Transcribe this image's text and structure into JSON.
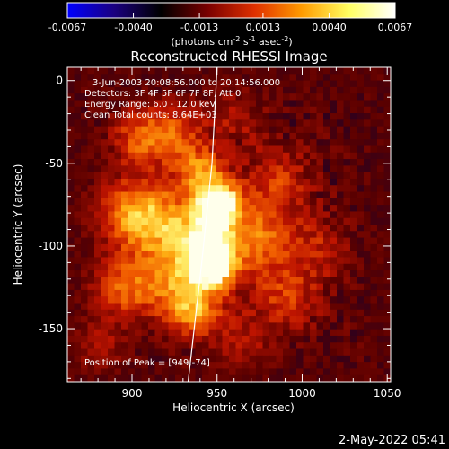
{
  "chart_data": {
    "type": "heatmap",
    "title": "Reconstructed RHESSI Image",
    "xlabel": "Heliocentric X (arcsec)",
    "ylabel": "Heliocentric Y (arcsec)",
    "xlim": [
      862,
      1052
    ],
    "ylim": [
      -182,
      8
    ],
    "x_ticks": [
      900,
      950,
      1000,
      1050
    ],
    "y_ticks": [
      0,
      -50,
      -100,
      -150
    ],
    "colorbar": {
      "ticks": [
        "-0.0067",
        "-0.0040",
        "-0.0013",
        "0.0013",
        "0.0040",
        "0.0067"
      ],
      "tick_values": [
        -0.0067,
        -0.004,
        -0.0013,
        0.0013,
        0.004,
        0.0067
      ],
      "unit_text": "(photons cm",
      "unit_exp1": "-2",
      "unit_mid": " s",
      "unit_exp2": "-1",
      "unit_mid2": " asec",
      "unit_exp3": "-2",
      "unit_end": ")",
      "range": [
        -0.0067,
        0.0067
      ],
      "colormap": [
        "#0000ff",
        "#1a0080",
        "#000000",
        "#7a0000",
        "#e03000",
        "#ff9a00",
        "#ffff60",
        "#ffffff"
      ]
    },
    "annotations": [
      "3-Jun-2003 20:08:56.000 to 20:14:56.000",
      "Detectors: 3F 4F 5F 6F 7F 8F, Att 0",
      "Energy Range: 6.0 - 12.0 keV",
      "Clean    Total counts: 8.64E+03"
    ],
    "peak_label": "Position of Peak = [949,-74]",
    "peak": [
      949,
      -74
    ],
    "limb_curve": [
      [
        933,
        -182
      ],
      [
        941,
        -110
      ],
      [
        947,
        -50
      ],
      [
        950,
        8
      ]
    ],
    "sources": [
      {
        "x": 951,
        "y": -74,
        "amp": 1.0,
        "sigma": 9
      },
      {
        "x": 947,
        "y": -113,
        "amp": 0.92,
        "sigma": 10
      },
      {
        "x": 944,
        "y": -95,
        "amp": 0.75,
        "sigma": 12
      },
      {
        "x": 940,
        "y": -55,
        "amp": 0.55,
        "sigma": 10
      },
      {
        "x": 936,
        "y": -140,
        "amp": 0.55,
        "sigma": 11
      },
      {
        "x": 915,
        "y": -85,
        "amp": 0.55,
        "sigma": 15
      },
      {
        "x": 922,
        "y": -120,
        "amp": 0.45,
        "sigma": 14
      },
      {
        "x": 892,
        "y": -125,
        "amp": 0.45,
        "sigma": 12
      },
      {
        "x": 895,
        "y": -80,
        "amp": 0.4,
        "sigma": 14
      },
      {
        "x": 905,
        "y": -35,
        "amp": 0.4,
        "sigma": 12
      },
      {
        "x": 925,
        "y": -30,
        "amp": 0.35,
        "sigma": 12
      },
      {
        "x": 975,
        "y": -95,
        "amp": 0.45,
        "sigma": 14
      },
      {
        "x": 985,
        "y": -60,
        "amp": 0.3,
        "sigma": 13
      },
      {
        "x": 990,
        "y": -130,
        "amp": 0.3,
        "sigma": 14
      },
      {
        "x": 1010,
        "y": -100,
        "amp": 0.2,
        "sigma": 14
      },
      {
        "x": 880,
        "y": -160,
        "amp": 0.25,
        "sigma": 12
      },
      {
        "x": 960,
        "y": -20,
        "amp": 0.2,
        "sigma": 12
      },
      {
        "x": 965,
        "y": -160,
        "amp": 0.25,
        "sigma": 12
      }
    ]
  },
  "footer": {
    "date_stamp": "2-May-2022 05:41"
  }
}
